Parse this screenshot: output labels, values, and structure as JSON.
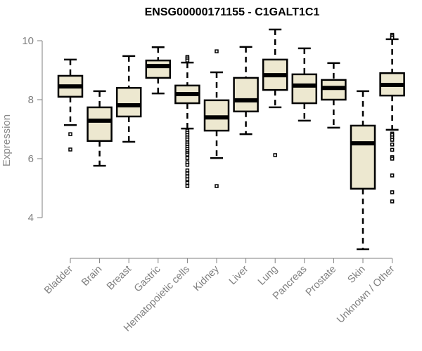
{
  "chart_data": {
    "type": "boxplot",
    "title": "ENSG00000171155 - C1GALT1C1",
    "xlabel": "",
    "ylabel": "Expression",
    "ylim": [
      3.0,
      10.4
    ],
    "yticks": [
      4,
      6,
      8,
      10
    ],
    "grid": false,
    "legend": "none",
    "box_color": "#ede8d0",
    "categories": [
      "Bladder",
      "Brain",
      "Breast",
      "Gastric",
      "Hematopoietic cells",
      "Kidney",
      "Liver",
      "Lung",
      "Pancreas",
      "Prostate",
      "Skin",
      "Unknown / Other"
    ],
    "series": [
      {
        "name": "Bladder",
        "whisker_low": 7.14,
        "q1": 8.1,
        "median": 8.45,
        "q3": 8.81,
        "whisker_high": 9.36,
        "outliers": [
          6.83,
          6.31
        ]
      },
      {
        "name": "Brain",
        "whisker_low": 5.76,
        "q1": 6.6,
        "median": 7.29,
        "q3": 7.74,
        "whisker_high": 8.29,
        "outliers": []
      },
      {
        "name": "Breast",
        "whisker_low": 6.57,
        "q1": 7.43,
        "median": 7.81,
        "q3": 8.4,
        "whisker_high": 9.48,
        "outliers": []
      },
      {
        "name": "Gastric",
        "whisker_low": 8.21,
        "q1": 8.74,
        "median": 9.14,
        "q3": 9.33,
        "whisker_high": 9.78,
        "outliers": []
      },
      {
        "name": "Hematopoietic cells",
        "whisker_low": 7.02,
        "q1": 7.88,
        "median": 8.19,
        "q3": 8.48,
        "whisker_high": 9.26,
        "outliers": [
          9.45,
          9.4,
          9.33,
          6.95,
          6.88,
          6.8,
          6.72,
          6.65,
          6.55,
          6.48,
          6.4,
          6.33,
          6.26,
          6.2,
          6.14,
          6.02,
          5.88,
          5.79,
          5.6,
          5.5,
          5.4,
          5.3,
          5.18,
          5.07
        ]
      },
      {
        "name": "Kidney",
        "whisker_low": 6.02,
        "q1": 6.95,
        "median": 7.4,
        "q3": 7.98,
        "whisker_high": 8.93,
        "outliers": [
          9.64,
          5.07
        ]
      },
      {
        "name": "Liver",
        "whisker_low": 6.83,
        "q1": 7.6,
        "median": 7.98,
        "q3": 8.74,
        "whisker_high": 9.79,
        "outliers": []
      },
      {
        "name": "Lung",
        "whisker_low": 7.74,
        "q1": 8.33,
        "median": 8.83,
        "q3": 9.36,
        "whisker_high": 10.38,
        "outliers": [
          6.12
        ]
      },
      {
        "name": "Pancreas",
        "whisker_low": 7.29,
        "q1": 7.88,
        "median": 8.48,
        "q3": 8.86,
        "whisker_high": 9.74,
        "outliers": []
      },
      {
        "name": "Prostate",
        "whisker_low": 7.05,
        "q1": 8.0,
        "median": 8.4,
        "q3": 8.67,
        "whisker_high": 9.24,
        "outliers": []
      },
      {
        "name": "Skin",
        "whisker_low": 2.93,
        "q1": 4.98,
        "median": 6.52,
        "q3": 7.12,
        "whisker_high": 8.29,
        "outliers": []
      },
      {
        "name": "Unknown / Other",
        "whisker_low": 6.98,
        "q1": 8.14,
        "median": 8.5,
        "q3": 8.9,
        "whisker_high": 10.05,
        "outliers": [
          10.2,
          10.15,
          10.1,
          6.85,
          6.8,
          6.72,
          6.64,
          6.48,
          6.3,
          6.05,
          6.0,
          5.43,
          4.86,
          4.55
        ]
      }
    ]
  }
}
